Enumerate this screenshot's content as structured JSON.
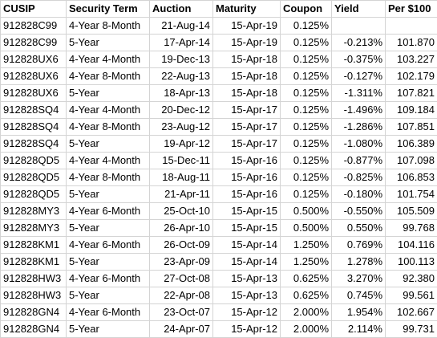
{
  "columns": [
    "CUSIP",
    "Security Term",
    "Auction",
    "Maturity",
    "Coupon",
    "Yield",
    "Per $100"
  ],
  "rows": [
    [
      "912828C99",
      "4-Year 8-Month",
      "21-Aug-14",
      "15-Apr-19",
      "0.125%",
      "",
      ""
    ],
    [
      "912828C99",
      "5-Year",
      "17-Apr-14",
      "15-Apr-19",
      "0.125%",
      "-0.213%",
      "101.870"
    ],
    [
      "912828UX6",
      "4-Year 4-Month",
      "19-Dec-13",
      "15-Apr-18",
      "0.125%",
      "-0.375%",
      "103.227"
    ],
    [
      "912828UX6",
      "4-Year 8-Month",
      "22-Aug-13",
      "15-Apr-18",
      "0.125%",
      "-0.127%",
      "102.179"
    ],
    [
      "912828UX6",
      "5-Year",
      "18-Apr-13",
      "15-Apr-18",
      "0.125%",
      "-1.311%",
      "107.821"
    ],
    [
      "912828SQ4",
      "4-Year 4-Month",
      "20-Dec-12",
      "15-Apr-17",
      "0.125%",
      "-1.496%",
      "109.184"
    ],
    [
      "912828SQ4",
      "4-Year 8-Month",
      "23-Aug-12",
      "15-Apr-17",
      "0.125%",
      "-1.286%",
      "107.851"
    ],
    [
      "912828SQ4",
      "5-Year",
      "19-Apr-12",
      "15-Apr-17",
      "0.125%",
      "-1.080%",
      "106.389"
    ],
    [
      "912828QD5",
      "4-Year 4-Month",
      "15-Dec-11",
      "15-Apr-16",
      "0.125%",
      "-0.877%",
      "107.098"
    ],
    [
      "912828QD5",
      "4-Year 8-Month",
      "18-Aug-11",
      "15-Apr-16",
      "0.125%",
      "-0.825%",
      "106.853"
    ],
    [
      "912828QD5",
      "5-Year",
      "21-Apr-11",
      "15-Apr-16",
      "0.125%",
      "-0.180%",
      "101.754"
    ],
    [
      "912828MY3",
      "4-Year 6-Month",
      "25-Oct-10",
      "15-Apr-15",
      "0.500%",
      "-0.550%",
      "105.509"
    ],
    [
      "912828MY3",
      "5-Year",
      "26-Apr-10",
      "15-Apr-15",
      "0.500%",
      "0.550%",
      "99.768"
    ],
    [
      "912828KM1",
      "4-Year 6-Month",
      "26-Oct-09",
      "15-Apr-14",
      "1.250%",
      "0.769%",
      "104.116"
    ],
    [
      "912828KM1",
      "5-Year",
      "23-Apr-09",
      "15-Apr-14",
      "1.250%",
      "1.278%",
      "100.113"
    ],
    [
      "912828HW3",
      "4-Year 6-Month",
      "27-Oct-08",
      "15-Apr-13",
      "0.625%",
      "3.270%",
      "92.380"
    ],
    [
      "912828HW3",
      "5-Year",
      "22-Apr-08",
      "15-Apr-13",
      "0.625%",
      "0.745%",
      "99.561"
    ],
    [
      "912828GN4",
      "4-Year 6-Month",
      "23-Oct-07",
      "15-Apr-12",
      "2.000%",
      "1.954%",
      "102.667"
    ],
    [
      "912828GN4",
      "5-Year",
      "24-Apr-07",
      "15-Apr-12",
      "2.000%",
      "2.114%",
      "99.731"
    ]
  ]
}
